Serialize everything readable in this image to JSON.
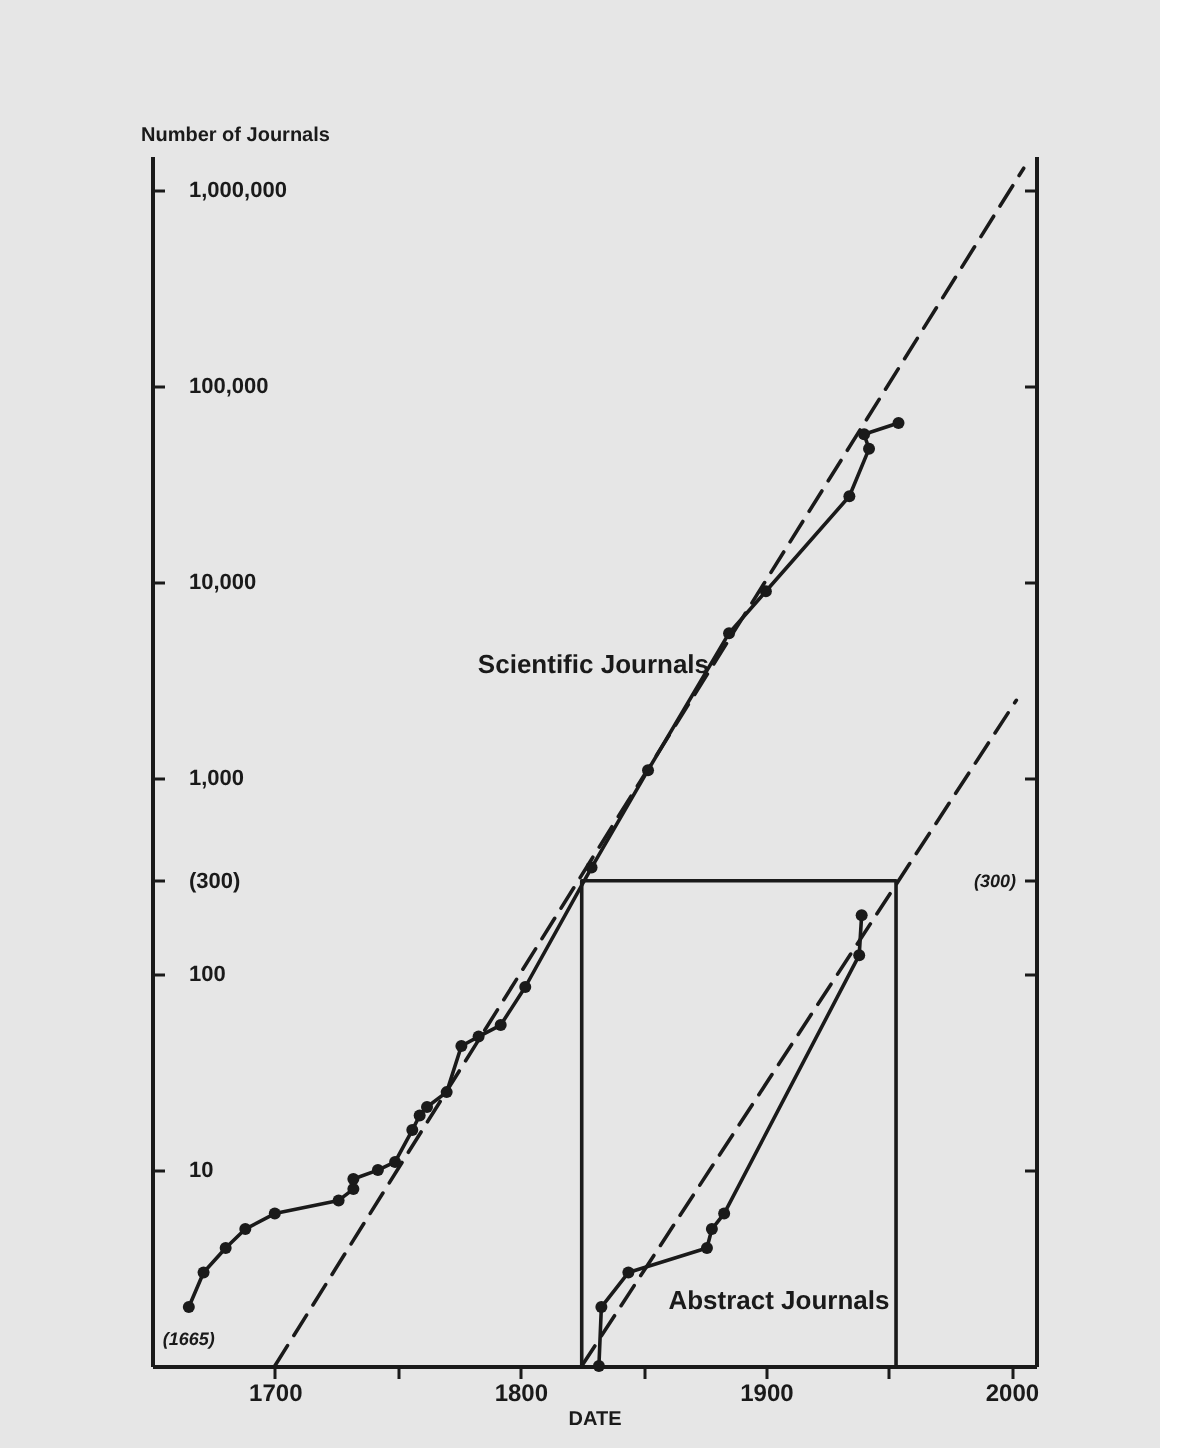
{
  "chart_data": {
    "type": "line",
    "xlabel": "DATE",
    "ylabel": "Number of Journals",
    "log": "y",
    "grid": false,
    "marker": "circle",
    "xlim": [
      1650,
      2010
    ],
    "xticks": [
      1700,
      {
        "value": 1750,
        "label": null
      },
      1800,
      {
        "value": 1850,
        "label": null
      },
      1900,
      {
        "value": 1950,
        "label": null
      },
      2000
    ],
    "ylim": [
      1,
      1500000
    ],
    "yticks": [
      10,
      100,
      {
        "value": 300,
        "label": "(300)"
      },
      {
        "value": 1000,
        "label": "1,000"
      },
      {
        "value": 10000,
        "label": "10,000"
      },
      {
        "value": 100000,
        "label": "100,000"
      },
      {
        "value": 1000000,
        "label": "1,000,000"
      }
    ],
    "annotations": [
      {
        "text": "(1665)",
        "x": 1665,
        "y": 2
      },
      "(300)"
    ],
    "series": [
      {
        "name": "Scientific Journals",
        "color": "#1a1a1a",
        "x": [
          1665,
          1671,
          1680,
          1688,
          1700,
          1726,
          1732,
          1732,
          1742,
          1749,
          1756,
          1759,
          1762,
          1770,
          1776,
          1783,
          1792,
          1802,
          1829,
          1852,
          1885,
          1900,
          1934,
          1942,
          1940,
          1954
        ],
        "values": [
          2,
          3,
          4,
          5,
          6,
          7,
          8,
          9,
          10,
          11,
          16,
          19,
          21,
          25,
          43,
          48,
          55,
          86,
          350,
          1100,
          5500,
          9000,
          27500,
          48000,
          57000,
          65000
        ]
      },
      {
        "name": "Abstract Journals",
        "color": "#1a1a1a",
        "x": [
          1832,
          1833,
          1844,
          1876,
          1878,
          1883,
          1938,
          1939
        ],
        "values": [
          1,
          2,
          3,
          4,
          5,
          6,
          125,
          200
        ]
      },
      {
        "type": "line",
        "color": "#1a1a1a",
        "marker": "none",
        "line_style": "dashed",
        "x": [
          1700,
          2005
        ],
        "values": [
          1,
          1300000
        ]
      },
      {
        "type": "line",
        "color": "#1a1a1a",
        "marker": "none",
        "line_style": "dashed",
        "x": [
          1825,
          2002
        ],
        "values": [
          1,
          2500
        ]
      },
      {
        "type": "line",
        "color": "#1a1a1a",
        "marker": "none",
        "x": [
          1825,
          1825,
          1953,
          1953
        ],
        "values": [
          1,
          300,
          300,
          1
        ]
      }
    ]
  }
}
